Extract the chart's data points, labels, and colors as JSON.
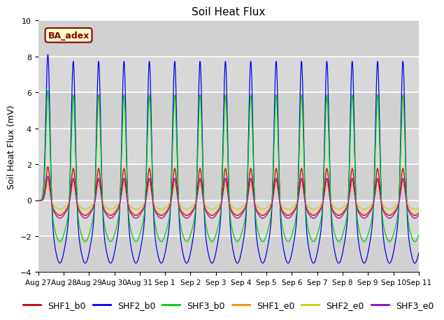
{
  "title": "Soil Heat Flux",
  "ylabel": "Soil Heat Flux (mV)",
  "xlabel": "",
  "ylim": [
    -4,
    10
  ],
  "background_color": "#ffffff",
  "plot_bg_color": "#d8d8d8",
  "grid_color": "#ffffff",
  "site_label": "BA_adex",
  "series": [
    {
      "name": "SHF1_b0",
      "color": "#cc0000"
    },
    {
      "name": "SHF2_b0",
      "color": "#0000ee"
    },
    {
      "name": "SHF3_b0",
      "color": "#00cc00"
    },
    {
      "name": "SHF1_e0",
      "color": "#ff8800"
    },
    {
      "name": "SHF2_e0",
      "color": "#cccc00"
    },
    {
      "name": "SHF3_e0",
      "color": "#9900cc"
    }
  ],
  "amplitudes_pos": [
    2.0,
    8.7,
    6.5,
    1.3,
    1.0,
    1.5
  ],
  "amplitudes_neg": [
    0.85,
    3.5,
    2.3,
    0.8,
    0.5,
    1.0
  ],
  "phase_shifts": [
    0.0,
    0.015,
    0.01,
    0.0,
    -0.01,
    0.005
  ],
  "x_tick_labels": [
    "Aug 27",
    "Aug 28",
    "Aug 29",
    "Aug 30",
    "Aug 31",
    "Sep 1",
    "Sep 2",
    "Sep 3",
    "Sep 4",
    "Sep 5",
    "Sep 6",
    "Sep 7",
    "Sep 8",
    "Sep 9",
    "Sep 10",
    "Sep 11"
  ],
  "legend_fontsize": 9,
  "title_fontsize": 11
}
